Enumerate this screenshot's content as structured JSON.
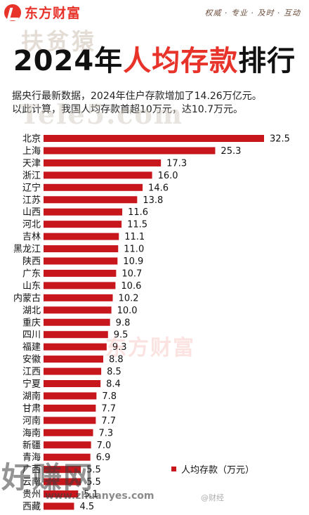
{
  "brand": {
    "logo_text": "东方财富",
    "slogan": "权威 · 专业 · 及时 · 互动"
  },
  "watermarks": {
    "top": "扶贫猿",
    "mid": "Tele5.com",
    "center": "东方财富",
    "bottom": "好赚网",
    "url": "www.zhuanyes.com",
    "weibo": "@财经"
  },
  "title": {
    "year": "2024年",
    "highlight": "人均存款",
    "suffix": "排行"
  },
  "intro": {
    "line1": "据央行最新数据，2024年住户存款增加了14.26万亿元。",
    "line2": "以此计算，我国人均存款首超10万元，达10.7万元。"
  },
  "colors": {
    "bar": "#c8161d",
    "accent": "#e8332a"
  },
  "chart_data": {
    "type": "bar",
    "orientation": "horizontal",
    "categories": [
      "北京",
      "上海",
      "天津",
      "浙江",
      "辽宁",
      "江苏",
      "山西",
      "河北",
      "吉林",
      "黑龙江",
      "陕西",
      "广东",
      "山东",
      "内蒙古",
      "湖北",
      "重庆",
      "四川",
      "福建",
      "安徽",
      "江西",
      "宁夏",
      "湖南",
      "甘肃",
      "河南",
      "海南",
      "新疆",
      "青海",
      "广西",
      "云南",
      "贵州",
      "西藏"
    ],
    "values": [
      32.5,
      25.3,
      17.3,
      16.0,
      14.6,
      13.8,
      11.6,
      11.5,
      11.1,
      11.0,
      10.9,
      10.7,
      10.6,
      10.2,
      10.0,
      9.8,
      9.5,
      9.3,
      8.8,
      8.5,
      8.4,
      7.8,
      7.7,
      7.7,
      7.3,
      7.0,
      6.9,
      5.5,
      5.5,
      5.1,
      4.5
    ],
    "value_labels": [
      "32.5",
      "25.3",
      "17.3",
      "16.0",
      "14.6",
      "13.8",
      "11.6",
      "11.5",
      "11.1",
      "11.0",
      "10.9",
      "10.7",
      "10.6",
      "10.2",
      "10.0",
      "9.8",
      "9.5",
      "9.3",
      "8.8",
      "8.5",
      "8.4",
      "7.8",
      "7.7",
      "7.7",
      "7.3",
      "7.0",
      "6.9",
      "5.5",
      "5.5",
      "5.1",
      "4.5"
    ],
    "series": [
      {
        "name": "人均存款（万元）"
      }
    ],
    "legend_position": "bottom-right",
    "xlim": [
      0,
      35
    ]
  }
}
